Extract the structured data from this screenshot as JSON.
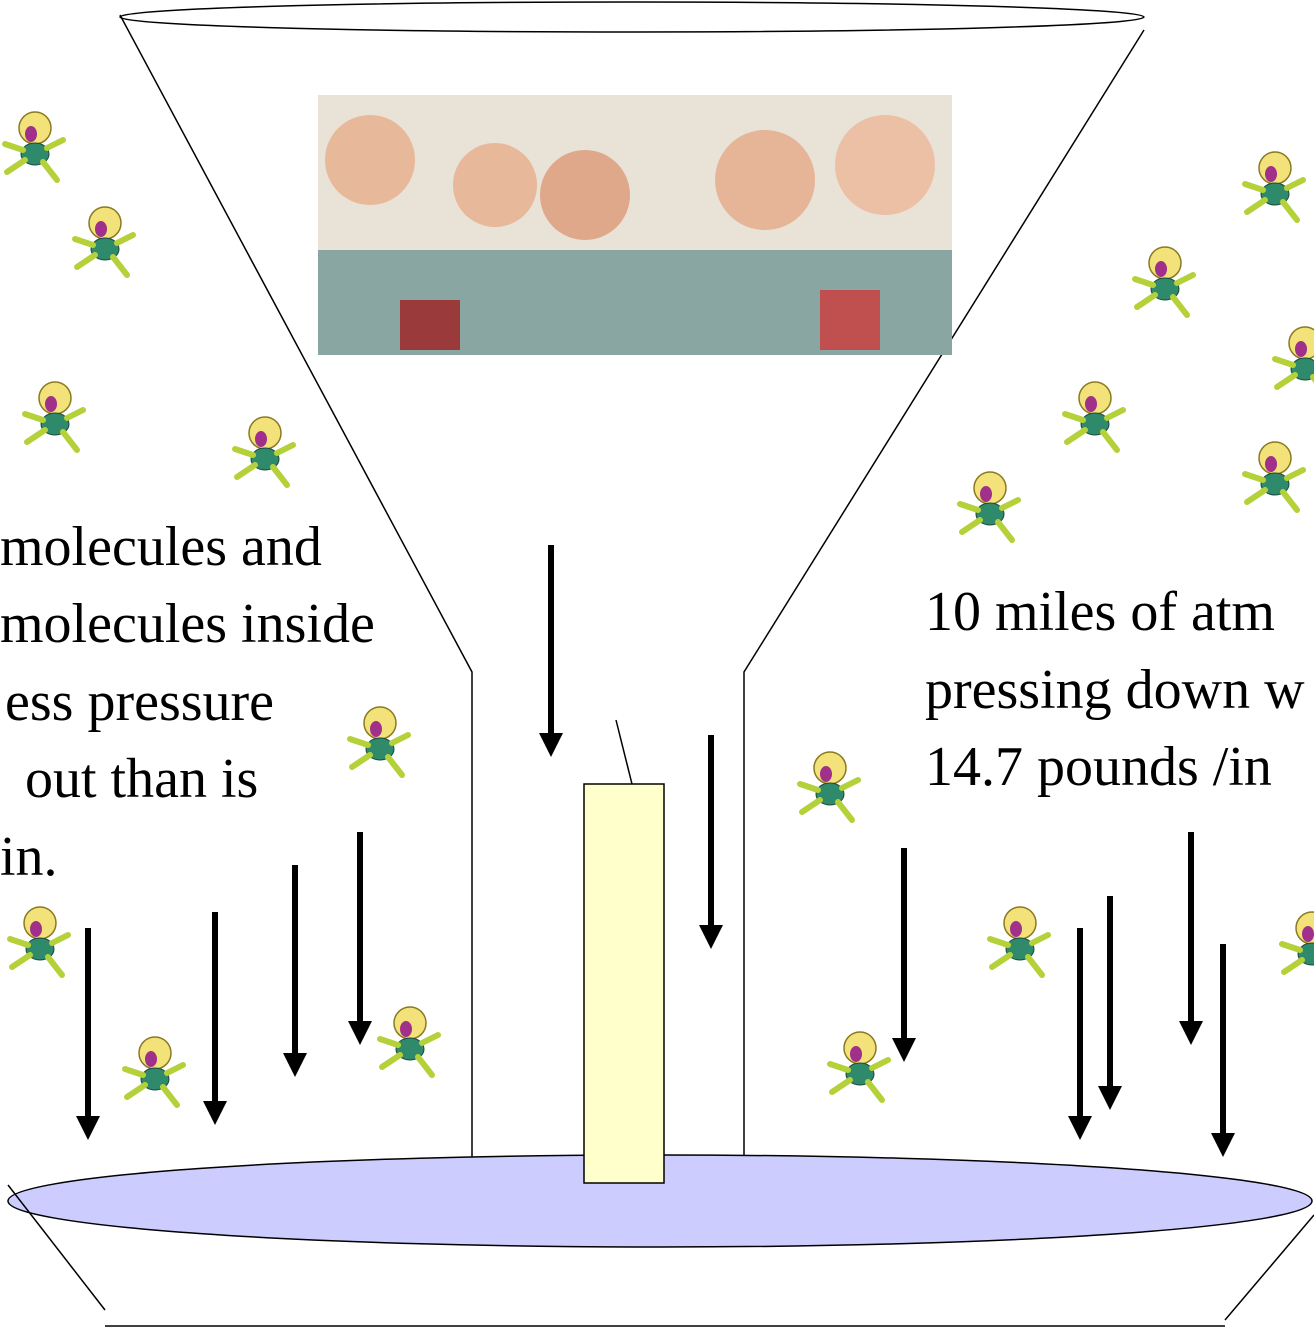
{
  "left_text": {
    "lines": [
      "molecules and",
      "molecules inside",
      "ess pressure",
      "out than is",
      "in."
    ]
  },
  "right_text": {
    "lines": [
      "10 miles of atm",
      "pressing down w",
      "14.7 pounds /in"
    ]
  }
}
